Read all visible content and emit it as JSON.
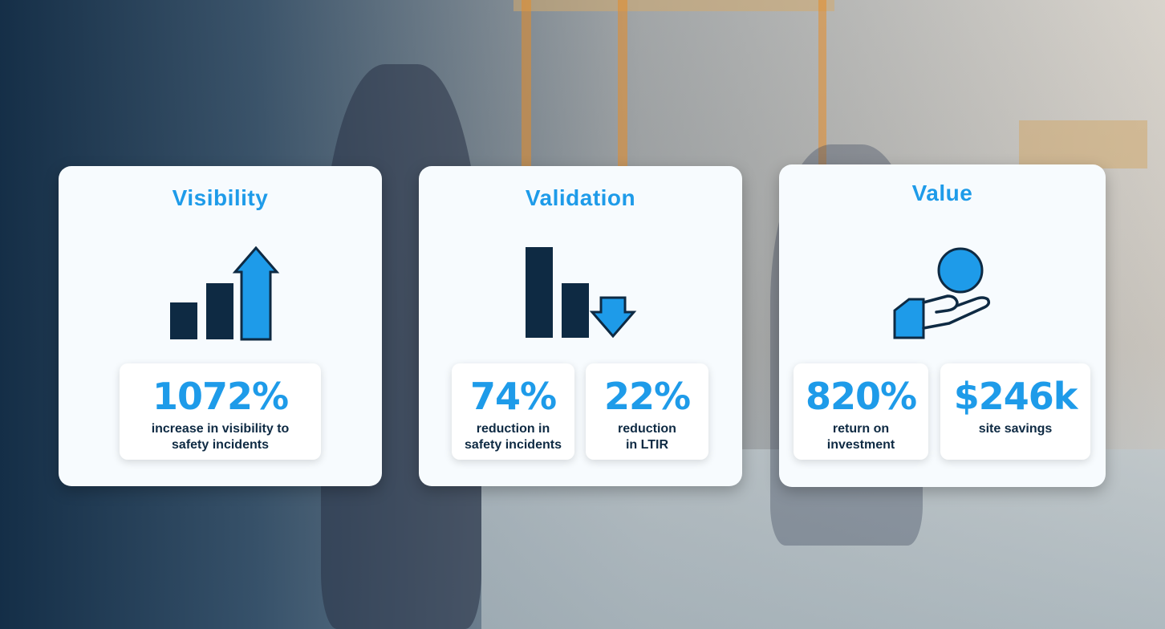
{
  "colors": {
    "accent": "#1e9be9",
    "dark": "#0e2a43",
    "card_bg": "#f7fbfe"
  },
  "background": {
    "icon": "warehouse-photo-background"
  },
  "cards": [
    {
      "title": "Visibility",
      "icon": "bar-chart-up-arrow-icon",
      "stats": [
        {
          "value": "1072%",
          "label": "increase in visibility to\nsafety incidents"
        }
      ]
    },
    {
      "title": "Validation",
      "icon": "bar-chart-down-arrow-icon",
      "stats": [
        {
          "value": "74%",
          "label": "reduction in\nsafety incidents"
        },
        {
          "value": "22%",
          "label": "reduction\nin LTIR"
        }
      ]
    },
    {
      "title": "Value",
      "icon": "hand-holding-coin-icon",
      "stats": [
        {
          "value": "820%",
          "label": "return on\ninvestment"
        },
        {
          "value": "$246k",
          "label": "site savings"
        }
      ]
    }
  ]
}
